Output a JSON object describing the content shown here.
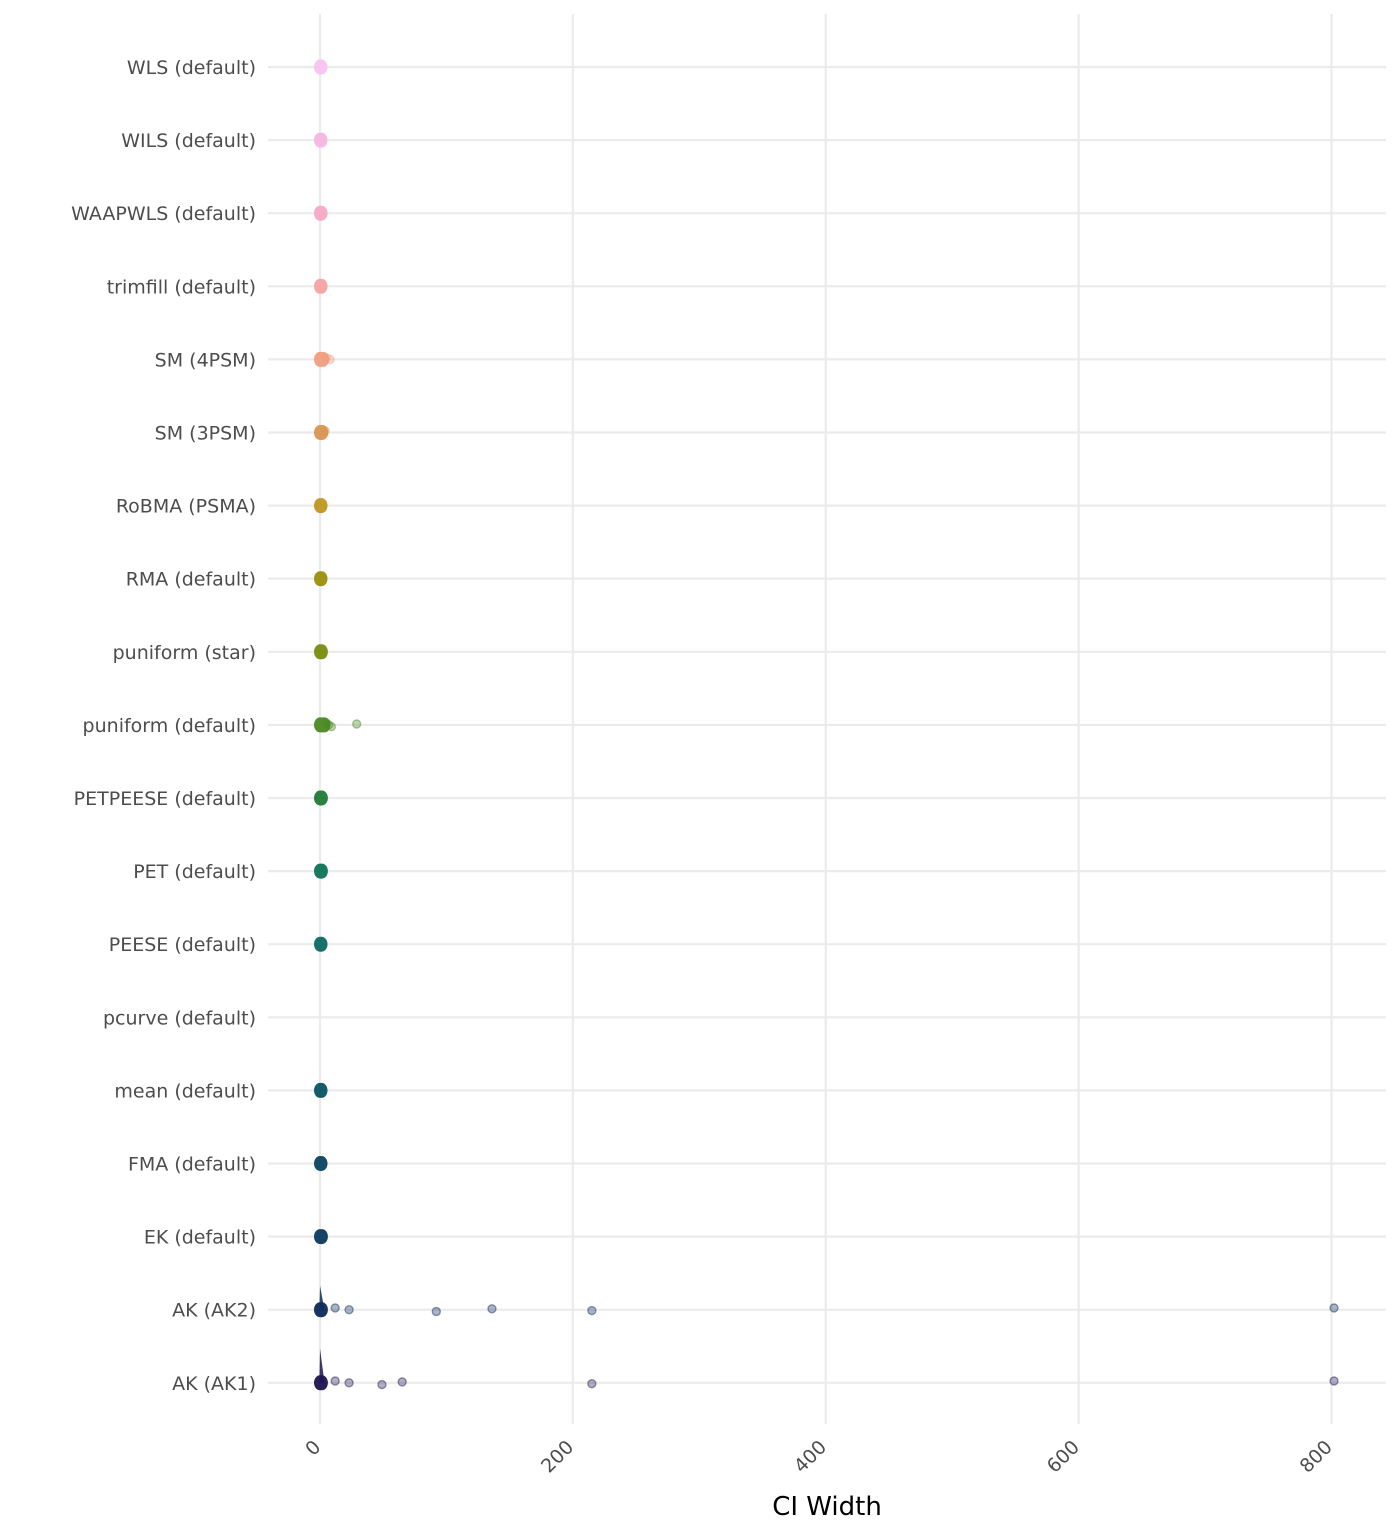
{
  "chart_data": {
    "type": "scatter",
    "title": "",
    "xlabel": "CI Width",
    "ylabel": "",
    "xlim": [
      -40,
      840
    ],
    "x_ticks": [
      "0",
      "200",
      "400",
      "600",
      "800"
    ],
    "grid": true,
    "legend": "none",
    "categories": [
      "AK (AK1)",
      "AK (AK2)",
      "EK (default)",
      "FMA (default)",
      "mean (default)",
      "pcurve (default)",
      "PEESE (default)",
      "PET (default)",
      "PETPEESE (default)",
      "puniform (default)",
      "puniform (star)",
      "RMA (default)",
      "RoBMA (PSMA)",
      "SM (3PSM)",
      "SM (4PSM)",
      "trimfill (default)",
      "WAAPWLS (default)",
      "WILS (default)",
      "WLS (default)"
    ],
    "series": [
      {
        "category": "AK (AK1)",
        "color": "#1f1450",
        "core": [
          0,
          1.5
        ],
        "spike": 0.85,
        "outliers": [
          12,
          23,
          49,
          65,
          215,
          802
        ]
      },
      {
        "category": "AK (AK2)",
        "color": "#0d2a5c",
        "core": [
          0,
          1.5
        ],
        "spike": 0.6,
        "outliers": [
          12,
          23,
          92,
          136,
          215,
          802
        ]
      },
      {
        "category": "EK (default)",
        "color": "#0b3a5e",
        "core": [
          0,
          1.5
        ],
        "spike": 0,
        "outliers": []
      },
      {
        "category": "FMA (default)",
        "color": "#0a4560",
        "core": [
          0,
          1.2
        ],
        "spike": 0,
        "outliers": []
      },
      {
        "category": "mean (default)",
        "color": "#0a5463",
        "core": [
          0,
          1.2
        ],
        "spike": 0,
        "outliers": []
      },
      {
        "category": "pcurve (default)",
        "color": "#0b6064",
        "core": [],
        "spike": 0,
        "outliers": []
      },
      {
        "category": "PEESE (default)",
        "color": "#0b6b62",
        "core": [
          0,
          1.2
        ],
        "spike": 0,
        "outliers": []
      },
      {
        "category": "PET (default)",
        "color": "#0e7354",
        "core": [
          0,
          1.5
        ],
        "spike": 0,
        "outliers": []
      },
      {
        "category": "PETPEESE (default)",
        "color": "#1f7a36",
        "core": [
          0,
          1.5
        ],
        "spike": 0,
        "outliers": []
      },
      {
        "category": "puniform (default)",
        "color": "#4a8a22",
        "core": [
          0,
          3.5
        ],
        "spike": 0,
        "outliers": [
          5,
          7,
          9,
          29
        ]
      },
      {
        "category": "puniform (star)",
        "color": "#7a8c0e",
        "core": [
          0,
          1.5
        ],
        "spike": 0,
        "outliers": []
      },
      {
        "category": "RMA (default)",
        "color": "#9a8e0c",
        "core": [
          0,
          1.2
        ],
        "spike": 0,
        "outliers": []
      },
      {
        "category": "RoBMA (PSMA)",
        "color": "#c09620",
        "core": [
          0,
          1.2
        ],
        "spike": 0,
        "outliers": []
      },
      {
        "category": "SM (3PSM)",
        "color": "#d99550",
        "core": [
          0,
          1.8
        ],
        "spike": 0,
        "outliers": [
          4
        ]
      },
      {
        "category": "SM (4PSM)",
        "color": "#f29d7e",
        "core": [
          0,
          2.5
        ],
        "spike": 0,
        "outliers": [
          5,
          8
        ]
      },
      {
        "category": "trimfill (default)",
        "color": "#f5a3a3",
        "core": [
          0,
          1.2
        ],
        "spike": 0,
        "outliers": []
      },
      {
        "category": "WAAPWLS (default)",
        "color": "#f6a9c6",
        "core": [
          0,
          1.2
        ],
        "spike": 0,
        "outliers": []
      },
      {
        "category": "WILS (default)",
        "color": "#f7b5e0",
        "core": [
          0,
          1.2
        ],
        "spike": 0,
        "outliers": []
      },
      {
        "category": "WLS (default)",
        "color": "#f9c3f0",
        "core": [
          0,
          1.2
        ],
        "spike": 0,
        "outliers": []
      }
    ]
  }
}
